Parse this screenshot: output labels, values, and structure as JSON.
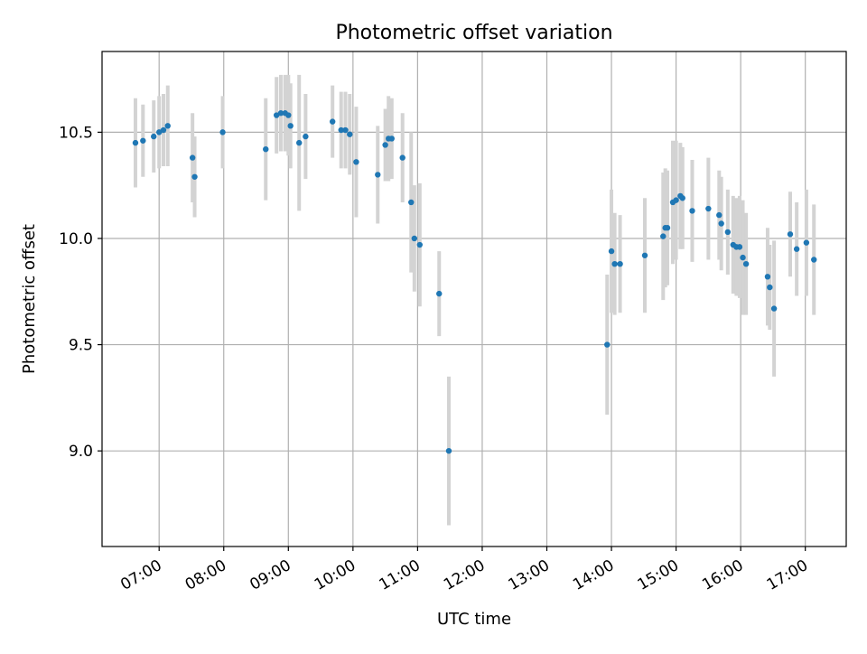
{
  "chart_data": {
    "type": "scatter",
    "title": "Photometric offset variation",
    "xlabel": "UTC time",
    "ylabel": "Photometric offset",
    "x_tick_labels": [
      "07:00",
      "08:00",
      "09:00",
      "10:00",
      "11:00",
      "12:00",
      "13:00",
      "14:00",
      "15:00",
      "16:00",
      "17:00"
    ],
    "y_tick_labels": [
      "9.0",
      "9.5",
      "10.0",
      "10.5"
    ],
    "y_ticks": [
      9.0,
      9.5,
      10.0,
      10.5
    ],
    "xlim": [
      "06:07",
      "17:38"
    ],
    "ylim": [
      8.55,
      10.88
    ],
    "grid": true,
    "colors": {
      "marker": "#1f77b4",
      "errorbar": "#d3d3d3",
      "grid": "#b0b0b0"
    },
    "series": [
      {
        "x": [
          "06:38",
          "06:45",
          "06:55",
          "07:00",
          "07:04",
          "07:08",
          "07:31",
          "07:33",
          "07:59",
          "08:39",
          "08:49",
          "08:53",
          "08:57",
          "09:00",
          "09:02",
          "09:10",
          "09:16",
          "09:41",
          "09:49",
          "09:53",
          "09:57",
          "10:03",
          "10:23",
          "10:30",
          "10:33",
          "10:36",
          "10:46",
          "10:54",
          "10:57",
          "11:02",
          "11:20",
          "11:29",
          "13:56",
          "14:00",
          "14:03",
          "14:08",
          "14:31",
          "14:48",
          "14:50",
          "14:52",
          "14:57",
          "15:00",
          "15:04",
          "15:06",
          "15:15",
          "15:30",
          "15:40",
          "15:42",
          "15:48",
          "15:53",
          "15:56",
          "15:59",
          "16:02",
          "16:05",
          "16:25",
          "16:27",
          "16:31",
          "16:46",
          "16:52",
          "17:01",
          "17:08"
        ],
        "y": [
          10.45,
          10.46,
          10.48,
          10.5,
          10.51,
          10.53,
          10.38,
          10.29,
          10.5,
          10.42,
          10.58,
          10.59,
          10.59,
          10.58,
          10.53,
          10.45,
          10.48,
          10.55,
          10.51,
          10.51,
          10.49,
          10.36,
          10.3,
          10.44,
          10.47,
          10.47,
          10.38,
          10.17,
          10.0,
          9.97,
          9.74,
          9.0,
          9.5,
          9.94,
          9.88,
          9.88,
          9.92,
          10.01,
          10.05,
          10.05,
          10.17,
          10.18,
          10.2,
          10.19,
          10.13,
          10.14,
          10.11,
          10.07,
          10.03,
          9.97,
          9.96,
          9.96,
          9.91,
          9.88,
          9.82,
          9.77,
          9.67,
          10.02,
          9.95,
          9.98,
          9.9
        ],
        "y_err": [
          0.21,
          0.17,
          0.17,
          0.17,
          0.17,
          0.19,
          0.21,
          0.19,
          0.17,
          0.24,
          0.18,
          0.18,
          0.18,
          0.19,
          0.2,
          0.32,
          0.2,
          0.17,
          0.18,
          0.18,
          0.19,
          0.26,
          0.23,
          0.17,
          0.2,
          0.19,
          0.21,
          0.33,
          0.25,
          0.29,
          0.2,
          0.35,
          0.33,
          0.29,
          0.24,
          0.23,
          0.27,
          0.3,
          0.28,
          0.27,
          0.29,
          0.28,
          0.25,
          0.24,
          0.24,
          0.24,
          0.21,
          0.22,
          0.2,
          0.23,
          0.23,
          0.24,
          0.27,
          0.24,
          0.23,
          0.2,
          0.32,
          0.2,
          0.22,
          0.25,
          0.26
        ]
      }
    ]
  }
}
